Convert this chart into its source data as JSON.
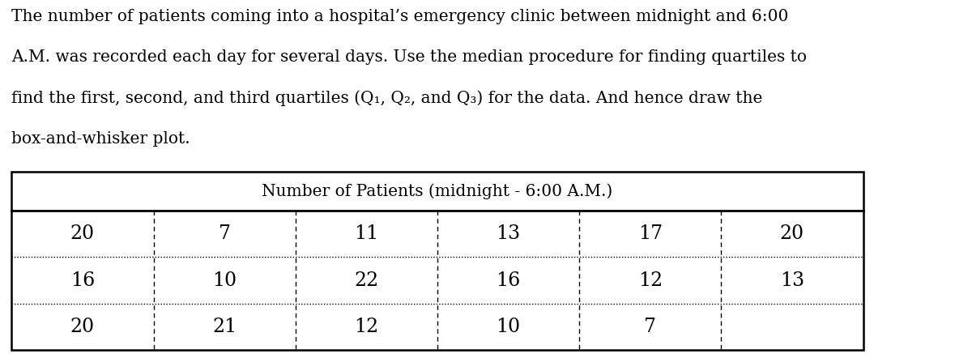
{
  "paragraph_lines": [
    "The number of patients coming into a hospital’s emergency clinic between midnight and 6:00",
    "A.M. was recorded each day for several days. Use the median procedure for finding quartiles to",
    "find the first, second, and third quartiles (Q₁, Q₂, and Q₃) for the data. And hence draw the",
    "box-and-whisker plot."
  ],
  "table_title": "Number of Patients (midnight - 6:00 A.M.)",
  "rows": [
    [
      20,
      7,
      11,
      13,
      17,
      20
    ],
    [
      16,
      10,
      22,
      16,
      12,
      13
    ],
    [
      20,
      21,
      12,
      10,
      7,
      ""
    ]
  ],
  "num_cols": 6,
  "background_color": "#ffffff",
  "text_color": "#000000",
  "para_fontsize": 14.5,
  "table_title_fontsize": 14.5,
  "cell_fontsize": 17,
  "figsize": [
    12,
    4.37
  ],
  "dpi": 100
}
